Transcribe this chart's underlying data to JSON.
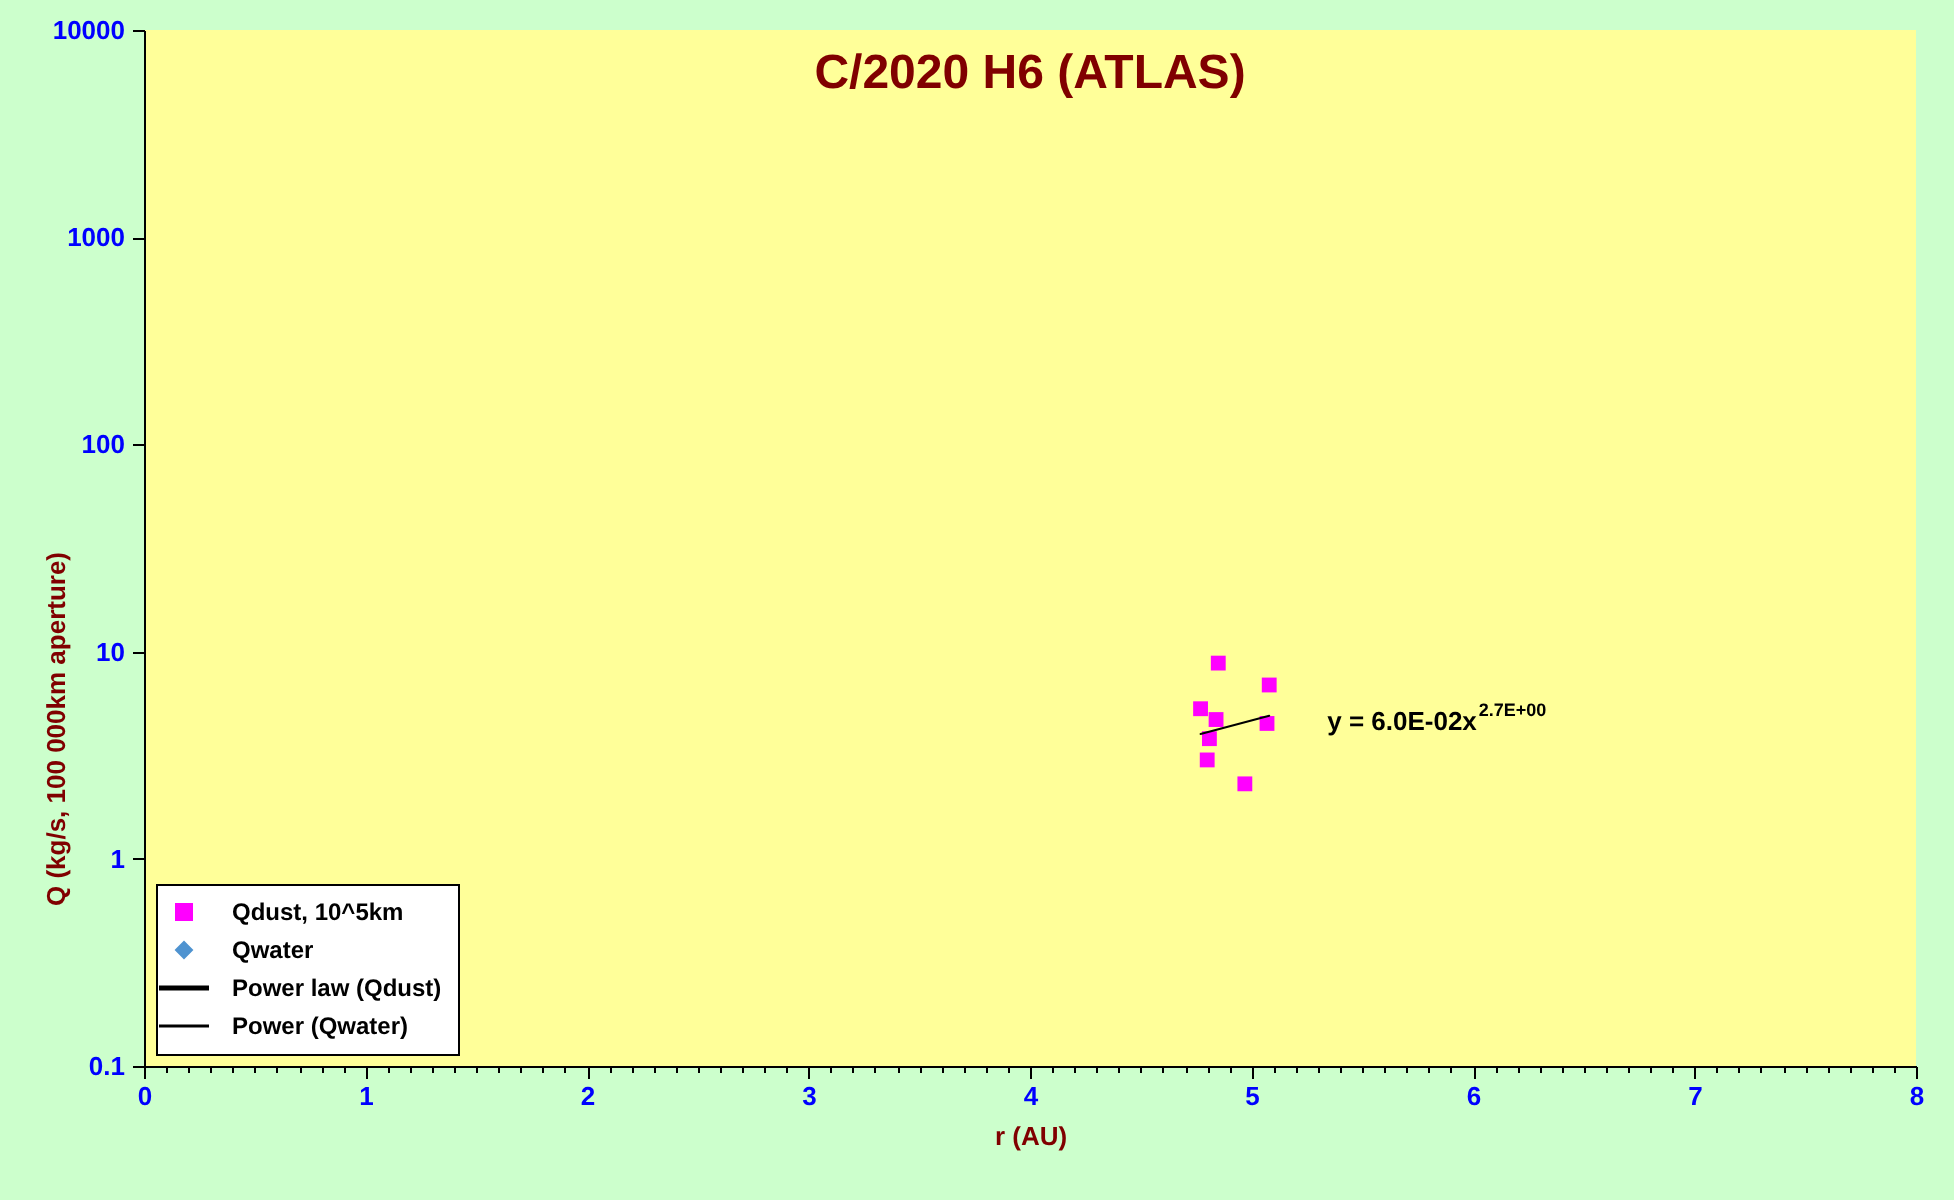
{
  "chart_data": {
    "type": "scatter",
    "title": "C/2020 H6 (ATLAS)",
    "xlabel": "r (AU)",
    "ylabel": "Q (kg/s, 100 000km aperture)",
    "series": [
      {
        "name": "Qdust, 10^5km",
        "marker": "square",
        "color": "#ff00ff",
        "x": [
          4.85,
          5.08,
          4.77,
          4.84,
          5.07,
          4.81,
          4.8,
          4.97
        ],
        "values": [
          8.8,
          6.9,
          5.3,
          4.7,
          4.5,
          3.8,
          3.0,
          2.3
        ]
      },
      {
        "name": "Qwater",
        "marker": "diamond",
        "color": "#4f93d0"
      },
      {
        "name": "Power law (Qdust)",
        "type": "line",
        "marker": "none",
        "line_style": "solid",
        "color": "#000000",
        "x": [
          4.77,
          5.08
        ],
        "values": [
          4.0,
          4.9
        ]
      },
      {
        "name": "Power (Qwater)",
        "type": "line",
        "marker": "none",
        "line_style": "solid",
        "color": "#000000"
      }
    ],
    "annotations": [
      "y = 6.0E-02x$^{2.7E+00}$"
    ],
    "xlim": [
      0,
      8
    ],
    "xticks": [
      0,
      {
        "value": 0.1,
        "label": null
      },
      {
        "value": 0.2,
        "label": null
      },
      {
        "value": 0.3,
        "label": null
      },
      {
        "value": 0.4,
        "label": null
      },
      {
        "value": 0.5,
        "label": null
      },
      {
        "value": 0.6,
        "label": null
      },
      {
        "value": 0.7,
        "label": null
      },
      {
        "value": 0.8,
        "label": null
      },
      {
        "value": 0.9,
        "label": null
      },
      1,
      {
        "value": 1.1,
        "label": null
      },
      {
        "value": 1.2,
        "label": null
      },
      {
        "value": 1.3,
        "label": null
      },
      {
        "value": 1.4,
        "label": null
      },
      {
        "value": 1.5,
        "label": null
      },
      {
        "value": 1.6,
        "label": null
      },
      {
        "value": 1.7,
        "label": null
      },
      {
        "value": 1.8,
        "label": null
      },
      {
        "value": 1.9,
        "label": null
      },
      2,
      {
        "value": 2.1,
        "label": null
      },
      {
        "value": 2.2,
        "label": null
      },
      {
        "value": 2.3,
        "label": null
      },
      {
        "value": 2.4,
        "label": null
      },
      {
        "value": 2.5,
        "label": null
      },
      {
        "value": 2.6,
        "label": null
      },
      {
        "value": 2.7,
        "label": null
      },
      {
        "value": 2.8,
        "label": null
      },
      {
        "value": 2.9,
        "label": null
      },
      3,
      {
        "value": 3.1,
        "label": null
      },
      {
        "value": 3.2,
        "label": null
      },
      {
        "value": 3.3,
        "label": null
      },
      {
        "value": 3.4,
        "label": null
      },
      {
        "value": 3.5,
        "label": null
      },
      {
        "value": 3.6,
        "label": null
      },
      {
        "value": 3.7,
        "label": null
      },
      {
        "value": 3.8,
        "label": null
      },
      {
        "value": 3.9,
        "label": null
      },
      4,
      {
        "value": 4.1,
        "label": null
      },
      {
        "value": 4.2,
        "label": null
      },
      {
        "value": 4.3,
        "label": null
      },
      {
        "value": 4.4,
        "label": null
      },
      {
        "value": 4.5,
        "label": null
      },
      {
        "value": 4.6,
        "label": null
      },
      {
        "value": 4.7,
        "label": null
      },
      {
        "value": 4.8,
        "label": null
      },
      {
        "value": 4.9,
        "label": null
      },
      5,
      {
        "value": 5.1,
        "label": null
      },
      {
        "value": 5.2,
        "label": null
      },
      {
        "value": 5.3,
        "label": null
      },
      {
        "value": 5.4,
        "label": null
      },
      {
        "value": 5.5,
        "label": null
      },
      {
        "value": 5.6,
        "label": null
      },
      {
        "value": 5.7,
        "label": null
      },
      {
        "value": 5.8,
        "label": null
      },
      {
        "value": 5.9,
        "label": null
      },
      6,
      {
        "value": 6.1,
        "label": null
      },
      {
        "value": 6.2,
        "label": null
      },
      {
        "value": 6.3,
        "label": null
      },
      {
        "value": 6.4,
        "label": null
      },
      {
        "value": 6.5,
        "label": null
      },
      {
        "value": 6.6,
        "label": null
      },
      {
        "value": 6.7,
        "label": null
      },
      {
        "value": 6.8,
        "label": null
      },
      {
        "value": 6.9,
        "label": null
      },
      7,
      {
        "value": 7.1,
        "label": null
      },
      {
        "value": 7.2,
        "label": null
      },
      {
        "value": 7.3,
        "label": null
      },
      {
        "value": 7.4,
        "label": null
      },
      {
        "value": 7.5,
        "label": null
      },
      {
        "value": 7.6,
        "label": null
      },
      {
        "value": 7.7,
        "label": null
      },
      {
        "value": 7.8,
        "label": null
      },
      {
        "value": 7.9,
        "label": null
      },
      8
    ],
    "ylim": [
      0.1,
      10000
    ],
    "yticks": [
      0.1,
      1,
      10,
      100,
      1000,
      10000
    ],
    "log": "y",
    "grid": false,
    "legend": "bottom left"
  }
}
